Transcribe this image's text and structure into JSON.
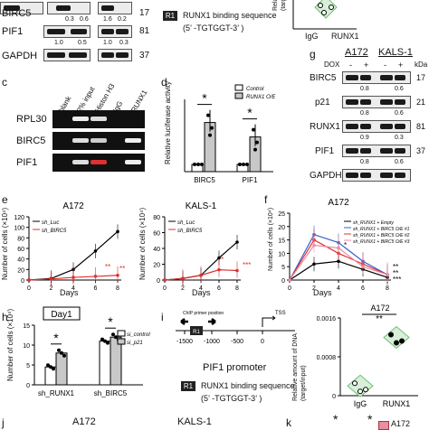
{
  "figure": {
    "a": {
      "quant_row1": [
        "0.3",
        "0.6",
        "1.6",
        "0.2"
      ],
      "rows": [
        {
          "label": "BIRC5",
          "kda": "17"
        },
        {
          "label": "PIF1",
          "kda": "81"
        },
        {
          "label": "GAPDH",
          "kda": "37"
        }
      ],
      "pif1_quant": [
        "1.0",
        "0.5"
      ],
      "pif1_quant_right": [
        "1.0",
        "0.3"
      ]
    },
    "b_top": {
      "box_label": "R1",
      "binding_text": "RUNX1 binding sequence",
      "binding_seq": "(5’ -TGTGGT-3’ )",
      "ylabel": "Relative\n(targ",
      "xticks": [
        "IgG",
        "RUNX1"
      ]
    },
    "c": {
      "panel_letter": "c",
      "lanes": [
        "blank",
        "2% input",
        "Histon H3",
        "IgG",
        "RUNX1"
      ],
      "rows": [
        "RPL30",
        "BIRC5",
        "PIF1"
      ]
    },
    "d": {
      "panel_letter": "d",
      "ylabel": "Relative luciferase activity",
      "legend": [
        "Control",
        "RUNX1 O/E"
      ],
      "categories": [
        "BIRC5",
        "PIF1"
      ],
      "sig": [
        "*",
        "*"
      ]
    },
    "g": {
      "panel_letter": "g",
      "cells": [
        "A172",
        "KALS-1"
      ],
      "dox_label": "DOX",
      "dox_signs": [
        "-",
        "+",
        "-",
        "+"
      ],
      "kda_label": "kDa",
      "rows": [
        {
          "label": "BIRC5",
          "kda": "17",
          "quant": [
            "0.8",
            "0.6"
          ]
        },
        {
          "label": "p21",
          "kda": "21",
          "quant": [
            "0.8",
            "0.6"
          ]
        },
        {
          "label": "RUNX1",
          "kda": "81",
          "quant": [
            "0.9",
            "0.3"
          ]
        },
        {
          "label": "PIF1",
          "kda": "37",
          "quant": [
            "0.8",
            "0.6"
          ]
        },
        {
          "label": "GAPDH",
          "kda": ""
        }
      ]
    },
    "e": {
      "panel_letter": "e",
      "ylabel": "Number of cells (×10⁴)",
      "xlabel": "Days",
      "sig_left": [
        "**",
        "**"
      ],
      "sig_right": [
        "*",
        "***"
      ],
      "legend": [
        "sh_Luc",
        "sh_BIRC5"
      ]
    },
    "f": {
      "panel_letter": "f",
      "legend": [
        "sh_RUNX1 + Empty",
        "sh_RUNX1 + BIRC5 O/E #1",
        "sh_RUNX1 + BIRC5 O/E #2",
        "sh_RUNX1 + BIRC5 O/E #3"
      ],
      "sig": [
        "*",
        "**",
        "**",
        "***"
      ]
    },
    "h": {
      "panel_letter": "h",
      "day_title": "Day1",
      "ylabel": "Number of cells (×10⁴)",
      "legend": [
        "si_control",
        "si_p21"
      ],
      "groups": [
        "sh_RUNX1",
        "sh_BIRC5"
      ],
      "sig": [
        "*",
        "*"
      ]
    },
    "i": {
      "panel_letter": "i",
      "chip_text": "ChIP primer position",
      "tss": "TSS",
      "r1": "R1",
      "ticks": [
        "-1500",
        "-1000",
        "-500",
        "0"
      ],
      "promoter": "PIF1 promoter",
      "binding_text": "RUNX1 binding sequence",
      "binding_seq": "(5’ -TGTGGT-3’ )",
      "chip_title": "A172",
      "chip_sig": "**",
      "chip_ylabel": "Relative amount of DNA\n(target/input)",
      "chip_xticks": [
        "IgG",
        "RUNX1"
      ]
    },
    "bottom": {
      "j_letter": "j",
      "k_letter": "k",
      "a172": "A172",
      "kals": "KALS-1",
      "sig": [
        "*",
        "*"
      ],
      "legend_a172": "A172"
    },
    "colors": {
      "red": "#e03030",
      "grey_bar": "#c8c8c8",
      "blue": "#3a5fcd",
      "pink": "#e58fa4",
      "green_diamond": "#6fbf73"
    }
  },
  "chart_data": [
    {
      "type": "bar",
      "panel": "d",
      "ylabel": "Relative luciferase activity",
      "categories": [
        "BIRC5",
        "PIF1"
      ],
      "series": [
        {
          "name": "Control",
          "values": [
            1.0,
            1.0
          ]
        },
        {
          "name": "RUNX1 O/E",
          "values": [
            6.8,
            4.8
          ]
        }
      ],
      "ylim": [
        0,
        10
      ]
    },
    {
      "type": "line",
      "panel": "e-A172",
      "title": "A172",
      "xlabel": "Days",
      "ylabel": "Number of cells (×10⁴)",
      "x": [
        0,
        2,
        4,
        6,
        8
      ],
      "series": [
        {
          "name": "sh_Luc",
          "values": [
            0,
            3,
            20,
            55,
            92
          ]
        },
        {
          "name": "sh_BIRC5",
          "values": [
            0,
            2,
            5,
            7,
            9
          ]
        }
      ],
      "ylim": [
        0,
        120
      ]
    },
    {
      "type": "line",
      "panel": "e-KALS-1",
      "title": "KALS-1",
      "xlabel": "Days",
      "ylabel": "Number of cells (×10⁴)",
      "x": [
        0,
        2,
        4,
        6,
        8
      ],
      "series": [
        {
          "name": "sh_Luc",
          "values": [
            0,
            2,
            6,
            28,
            48
          ]
        },
        {
          "name": "sh_BIRC5",
          "values": [
            0,
            2,
            6,
            13,
            12
          ]
        }
      ],
      "ylim": [
        0,
        80
      ]
    },
    {
      "type": "line",
      "panel": "f",
      "title": "A172",
      "xlabel": "Days",
      "ylabel": "Number of cells (×10⁴)",
      "x": [
        0,
        2,
        4,
        6,
        8
      ],
      "series": [
        {
          "name": "sh_RUNX1 + Empty",
          "values": [
            0,
            6,
            7,
            4,
            1
          ]
        },
        {
          "name": "sh_RUNX1 + BIRC5 O/E #1",
          "values": [
            0,
            17,
            14,
            7,
            2
          ]
        },
        {
          "name": "sh_RUNX1 + BIRC5 O/E #2",
          "values": [
            0,
            15,
            10,
            6,
            2
          ]
        },
        {
          "name": "sh_RUNX1 + BIRC5 O/E #3",
          "values": [
            0,
            13,
            12,
            5,
            2
          ]
        }
      ],
      "ylim": [
        0,
        25
      ]
    },
    {
      "type": "bar",
      "panel": "h",
      "title": "Day1",
      "ylabel": "Number of cells (×10⁴)",
      "categories": [
        "sh_RUNX1",
        "sh_BIRC5"
      ],
      "series": [
        {
          "name": "si_control",
          "values": [
            4.5,
            11.0
          ]
        },
        {
          "name": "si_p21",
          "values": [
            8.0,
            12.0
          ]
        }
      ],
      "ylim": [
        0,
        15
      ]
    },
    {
      "type": "scatter",
      "panel": "i-ChIP",
      "title": "A172",
      "ylabel": "Relative amount of DNA (target/input)",
      "categories": [
        "IgG",
        "RUNX1"
      ],
      "values": [
        0.0002,
        0.0012
      ],
      "ylim": [
        0,
        0.0016
      ]
    }
  ]
}
